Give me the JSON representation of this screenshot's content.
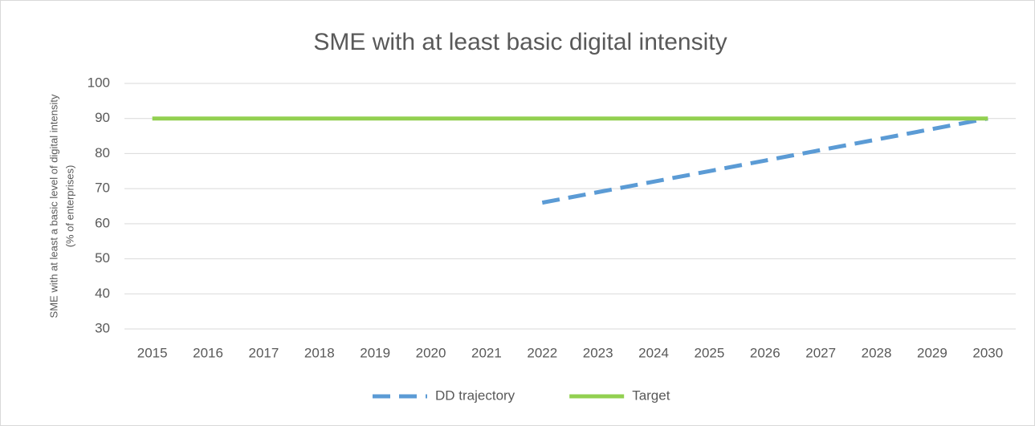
{
  "chart_data": {
    "type": "line",
    "title": "SME with at least basic digital intensity",
    "y_label": [
      "SME with at least a basic level of digital intensity",
      "(% of enterprises)"
    ],
    "categories": [
      "2015",
      "2016",
      "2017",
      "2018",
      "2019",
      "2020",
      "2021",
      "2022",
      "2023",
      "2024",
      "2025",
      "2026",
      "2027",
      "2028",
      "2029",
      "2030"
    ],
    "series": [
      {
        "name": "DD trajectory",
        "color": "#5b9bd5",
        "dashed": true,
        "values": [
          null,
          null,
          null,
          null,
          null,
          null,
          null,
          66,
          69,
          72,
          75,
          78,
          81,
          84,
          87,
          90
        ]
      },
      {
        "name": "Target",
        "color": "#92d050",
        "dashed": false,
        "values": [
          90,
          90,
          90,
          90,
          90,
          90,
          90,
          90,
          90,
          90,
          90,
          90,
          90,
          90,
          90,
          90
        ]
      }
    ],
    "ylim": [
      30,
      100
    ],
    "yticks": [
      30,
      40,
      50,
      60,
      70,
      80,
      90,
      100
    ],
    "grid": true,
    "legend": "bottom"
  }
}
